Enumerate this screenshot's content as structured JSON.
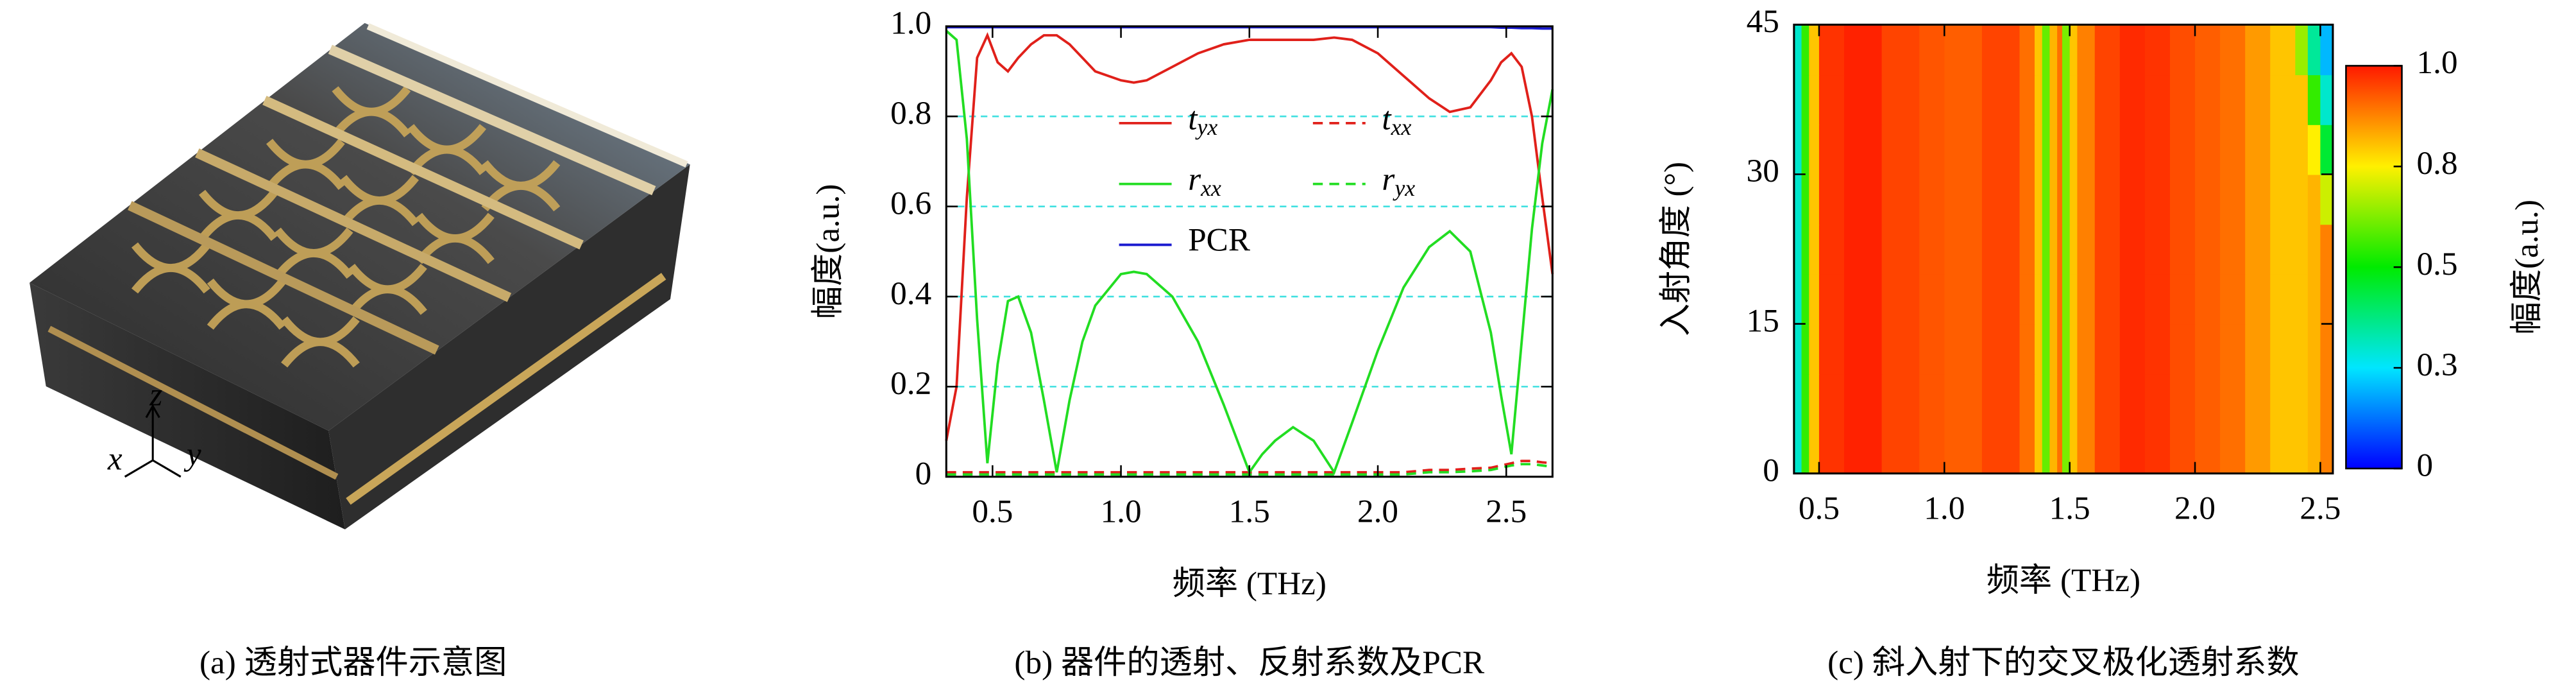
{
  "panel_a": {
    "caption": "(a) 透射式器件示意图",
    "axes": [
      "x",
      "y",
      "z"
    ]
  },
  "chart_data": [
    {
      "type": "line",
      "caption": "(b) 器件的透射、反射系数及PCR",
      "xlabel": "频率 (THz)",
      "ylabel": "幅度(a.u.)",
      "xlim": [
        0.32,
        2.68
      ],
      "ylim": [
        0,
        1
      ],
      "xticks": [
        0.5,
        {
          "value": 1,
          "label": "1.0"
        },
        1.5,
        {
          "value": 2,
          "label": "2.0"
        },
        2.5
      ],
      "yticks": [
        0,
        0.2,
        0.4,
        0.6,
        0.8,
        {
          "value": 1,
          "label": "1.0"
        }
      ],
      "grid": true,
      "grid_color": "#40e0e0",
      "legend": "upper center",
      "x": [
        0.32,
        0.36,
        0.4,
        0.44,
        0.48,
        0.52,
        0.56,
        0.6,
        0.65,
        0.7,
        0.75,
        0.8,
        0.85,
        0.9,
        1.0,
        1.05,
        1.1,
        1.2,
        1.3,
        1.4,
        1.5,
        1.55,
        1.6,
        1.67,
        1.75,
        1.83,
        1.9,
        2.0,
        2.1,
        2.2,
        2.28,
        2.36,
        2.44,
        2.48,
        2.52,
        2.56,
        2.6,
        2.64,
        2.68
      ],
      "series": [
        {
          "name": "tyx",
          "color": "#e0201a",
          "dash": false,
          "values": [
            0.08,
            0.2,
            0.62,
            0.93,
            0.98,
            0.92,
            0.9,
            0.93,
            0.96,
            0.98,
            0.98,
            0.96,
            0.93,
            0.9,
            0.88,
            0.875,
            0.88,
            0.91,
            0.94,
            0.96,
            0.97,
            0.97,
            0.97,
            0.97,
            0.97,
            0.975,
            0.97,
            0.94,
            0.89,
            0.84,
            0.81,
            0.82,
            0.88,
            0.92,
            0.94,
            0.91,
            0.8,
            0.62,
            0.45
          ]
        },
        {
          "name": "txx",
          "color": "#e0201a",
          "dash": true,
          "values": [
            0.01,
            0.01,
            0.01,
            0.01,
            0.01,
            0.01,
            0.01,
            0.01,
            0.01,
            0.01,
            0.01,
            0.01,
            0.01,
            0.01,
            0.01,
            0.01,
            0.01,
            0.01,
            0.01,
            0.01,
            0.01,
            0.01,
            0.01,
            0.01,
            0.01,
            0.01,
            0.01,
            0.01,
            0.01,
            0.015,
            0.015,
            0.018,
            0.02,
            0.025,
            0.03,
            0.035,
            0.035,
            0.032,
            0.03
          ]
        },
        {
          "name": "rxx",
          "color": "#22dd22",
          "dash": false,
          "values": [
            0.99,
            0.97,
            0.75,
            0.35,
            0.03,
            0.25,
            0.39,
            0.4,
            0.32,
            0.17,
            0.01,
            0.17,
            0.3,
            0.38,
            0.45,
            0.455,
            0.45,
            0.4,
            0.3,
            0.16,
            0.01,
            0.05,
            0.08,
            0.11,
            0.08,
            0.01,
            0.12,
            0.28,
            0.42,
            0.51,
            0.545,
            0.5,
            0.32,
            0.18,
            0.05,
            0.3,
            0.55,
            0.74,
            0.86
          ]
        },
        {
          "name": "ryx",
          "color": "#22dd22",
          "dash": true,
          "values": [
            0.005,
            0.005,
            0.005,
            0.005,
            0.005,
            0.005,
            0.005,
            0.005,
            0.005,
            0.005,
            0.005,
            0.005,
            0.005,
            0.005,
            0.005,
            0.005,
            0.005,
            0.005,
            0.005,
            0.005,
            0.005,
            0.005,
            0.005,
            0.005,
            0.005,
            0.005,
            0.005,
            0.005,
            0.005,
            0.01,
            0.01,
            0.012,
            0.015,
            0.02,
            0.025,
            0.028,
            0.028,
            0.025,
            0.022
          ]
        },
        {
          "name": "PCR",
          "color": "#1a1ad0",
          "dash": false,
          "values": [
            0.998,
            0.998,
            0.998,
            0.998,
            0.998,
            0.998,
            0.998,
            0.998,
            0.998,
            0.998,
            0.998,
            0.998,
            0.998,
            0.998,
            0.998,
            0.998,
            0.998,
            0.998,
            0.998,
            0.998,
            0.998,
            0.998,
            0.998,
            0.998,
            0.998,
            0.998,
            0.998,
            0.998,
            0.998,
            0.998,
            0.998,
            0.998,
            0.998,
            0.997,
            0.997,
            0.996,
            0.996,
            0.995,
            0.995
          ]
        }
      ]
    },
    {
      "type": "heatmap",
      "caption": "(c) 斜入射下的交叉极化透射系数",
      "xlabel": "频率 (THz)",
      "ylabel": "入射角度 (°)",
      "colorbar_label": "幅度(a.u.)",
      "colormap": "jet",
      "xlim": [
        0.4,
        2.55
      ],
      "ylim": [
        0,
        45
      ],
      "clim": [
        0,
        1
      ],
      "xticks": [
        0.5,
        {
          "value": 1,
          "label": "1.0"
        },
        1.5,
        {
          "value": 2,
          "label": "2.0"
        },
        2.5
      ],
      "yticks": [
        0,
        15,
        30,
        45
      ],
      "cticks": [
        0,
        {
          "value": 0.25,
          "label": "0.3"
        },
        0.5,
        {
          "value": 0.75,
          "label": "0.8"
        },
        {
          "value": 1,
          "label": "1.0"
        }
      ],
      "x_edges": [
        0.4,
        0.43,
        0.46,
        0.5,
        0.6,
        0.75,
        0.9,
        1.0,
        1.15,
        1.3,
        1.36,
        1.39,
        1.42,
        1.45,
        1.47,
        1.5,
        1.53,
        1.6,
        1.7,
        1.8,
        1.9,
        2.0,
        2.1,
        2.2,
        2.3,
        2.4,
        2.45,
        2.5,
        2.55
      ],
      "y_edges": [
        0,
        5,
        10,
        15,
        20,
        25,
        30,
        35,
        40,
        45
      ],
      "z": [
        [
          0.3,
          0.55,
          0.8,
          0.97,
          0.99,
          0.95,
          0.93,
          0.92,
          0.95,
          0.9,
          0.8,
          0.6,
          0.82,
          0.9,
          0.62,
          0.8,
          0.88,
          0.95,
          0.98,
          0.97,
          0.94,
          0.92,
          0.9,
          0.85,
          0.8,
          0.8,
          0.82,
          0.88
        ],
        [
          0.3,
          0.55,
          0.8,
          0.97,
          0.99,
          0.95,
          0.93,
          0.92,
          0.95,
          0.9,
          0.8,
          0.6,
          0.82,
          0.9,
          0.62,
          0.8,
          0.88,
          0.95,
          0.98,
          0.97,
          0.94,
          0.92,
          0.9,
          0.85,
          0.8,
          0.8,
          0.82,
          0.88
        ],
        [
          0.3,
          0.55,
          0.8,
          0.97,
          0.99,
          0.95,
          0.93,
          0.92,
          0.95,
          0.9,
          0.8,
          0.6,
          0.82,
          0.9,
          0.62,
          0.8,
          0.88,
          0.95,
          0.98,
          0.97,
          0.94,
          0.92,
          0.9,
          0.85,
          0.8,
          0.8,
          0.82,
          0.88
        ],
        [
          0.3,
          0.55,
          0.8,
          0.97,
          0.99,
          0.95,
          0.93,
          0.92,
          0.95,
          0.9,
          0.8,
          0.6,
          0.82,
          0.9,
          0.62,
          0.8,
          0.88,
          0.95,
          0.98,
          0.97,
          0.94,
          0.92,
          0.9,
          0.85,
          0.8,
          0.8,
          0.82,
          0.88
        ],
        [
          0.3,
          0.55,
          0.8,
          0.97,
          0.99,
          0.95,
          0.93,
          0.92,
          0.95,
          0.9,
          0.8,
          0.6,
          0.82,
          0.9,
          0.62,
          0.8,
          0.88,
          0.95,
          0.98,
          0.97,
          0.94,
          0.92,
          0.9,
          0.85,
          0.8,
          0.8,
          0.82,
          0.88
        ],
        [
          0.3,
          0.55,
          0.8,
          0.97,
          0.99,
          0.95,
          0.93,
          0.92,
          0.95,
          0.9,
          0.8,
          0.6,
          0.82,
          0.9,
          0.62,
          0.8,
          0.88,
          0.95,
          0.98,
          0.97,
          0.94,
          0.92,
          0.9,
          0.85,
          0.8,
          0.8,
          0.82,
          0.7
        ],
        [
          0.3,
          0.55,
          0.8,
          0.97,
          0.99,
          0.95,
          0.93,
          0.92,
          0.95,
          0.9,
          0.8,
          0.6,
          0.82,
          0.9,
          0.62,
          0.8,
          0.88,
          0.95,
          0.98,
          0.97,
          0.94,
          0.92,
          0.9,
          0.85,
          0.8,
          0.8,
          0.75,
          0.45
        ],
        [
          0.3,
          0.55,
          0.8,
          0.97,
          0.99,
          0.95,
          0.93,
          0.92,
          0.95,
          0.9,
          0.8,
          0.6,
          0.82,
          0.9,
          0.62,
          0.8,
          0.88,
          0.95,
          0.98,
          0.97,
          0.94,
          0.92,
          0.9,
          0.85,
          0.8,
          0.8,
          0.55,
          0.3
        ],
        [
          0.3,
          0.55,
          0.8,
          0.97,
          0.99,
          0.95,
          0.93,
          0.92,
          0.95,
          0.9,
          0.8,
          0.6,
          0.82,
          0.9,
          0.62,
          0.8,
          0.88,
          0.95,
          0.98,
          0.97,
          0.94,
          0.92,
          0.9,
          0.85,
          0.8,
          0.65,
          0.35,
          0.2
        ]
      ]
    }
  ]
}
